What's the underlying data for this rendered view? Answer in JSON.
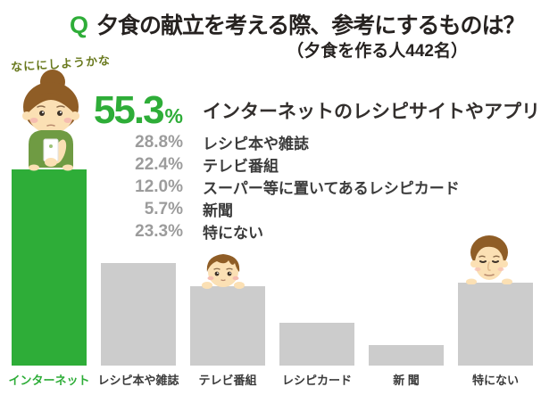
{
  "title": {
    "q_mark": "Q",
    "text": "夕食の献立を考える際、参考にするものは？",
    "subtitle": "（夕食を作る人442名）"
  },
  "speech_bubble": "なににしようかな",
  "stats": [
    {
      "value": "55.3",
      "unit": "%",
      "label": "インターネットのレシピサイトやアプリ"
    },
    {
      "value": "28.8%",
      "label": "レシピ本や雑誌"
    },
    {
      "value": "22.4%",
      "label": "テレビ番組"
    },
    {
      "value": "12.0%",
      "label": "スーパー等に置いてあるレシピカード"
    },
    {
      "value": "5.7%",
      "label": "新聞"
    },
    {
      "value": "23.3%",
      "label": "特にない"
    }
  ],
  "chart_data": {
    "type": "bar",
    "title": "夕食の献立を考える際、参考にするものは？",
    "subtitle": "（夕食を作る人442名）",
    "categories": [
      "インターネット",
      "レシピ本や雑誌",
      "テレビ番組",
      "レシピカード",
      "新 聞",
      "特にない"
    ],
    "values": [
      55.3,
      28.8,
      22.4,
      12.0,
      5.7,
      23.3
    ],
    "unit": "%",
    "ylim": [
      0,
      60
    ],
    "grid": false,
    "legend": "none",
    "highlight_index": 0,
    "bar_colors": {
      "highlight": "#2ead38",
      "default": "#cccccc"
    }
  },
  "colors": {
    "accent_green": "#2ead38",
    "bar_gray": "#cccccc",
    "number_gray": "#9c9c9c",
    "text_dark": "#3b3b3b",
    "speech_olive": "#6a7a1f",
    "hair_brown": "#8f5d26",
    "skin": "#fbe0b4"
  }
}
